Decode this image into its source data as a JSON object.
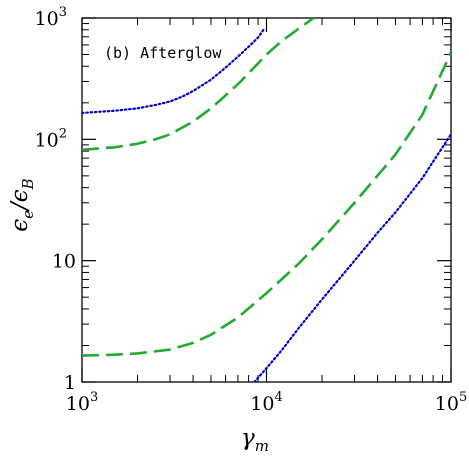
{
  "chart_data": {
    "type": "line",
    "panel_label": "(b) Afterglow",
    "xlabel_symbol": "γ",
    "xlabel_sub": "m",
    "ylabel_num_symbol": "ϵ",
    "ylabel_num_sub": "e",
    "ylabel_den_symbol": "ϵ",
    "ylabel_den_sub": "B",
    "xscale": "log",
    "yscale": "log",
    "xlim": [
      1000,
      100000
    ],
    "ylim": [
      1,
      1000
    ],
    "x_ticks": [
      {
        "value": 1000,
        "base": "10",
        "exp": "3"
      },
      {
        "value": 10000,
        "base": "10",
        "exp": "4"
      },
      {
        "value": 100000,
        "base": "10",
        "exp": "5"
      }
    ],
    "y_ticks": [
      {
        "value": 1,
        "base": "1",
        "exp": ""
      },
      {
        "value": 10,
        "base": "10",
        "exp": ""
      },
      {
        "value": 100,
        "base": "10",
        "exp": "2"
      },
      {
        "value": 1000,
        "base": "10",
        "exp": "3"
      }
    ],
    "grid": false,
    "series": [
      {
        "color": "#0000cc",
        "style": "dotted",
        "points": [
          [
            1000,
            165
          ],
          [
            1500,
            172
          ],
          [
            2000,
            180
          ],
          [
            2500,
            192
          ],
          [
            3000,
            205
          ],
          [
            3500,
            225
          ],
          [
            4000,
            250
          ],
          [
            5000,
            310
          ],
          [
            6000,
            390
          ],
          [
            7000,
            480
          ],
          [
            8000,
            580
          ],
          [
            9000,
            690
          ],
          [
            9800,
            830
          ]
        ]
      },
      {
        "color": "#22aa33",
        "style": "dashed",
        "points": [
          [
            1000,
            82
          ],
          [
            1500,
            86
          ],
          [
            2000,
            92
          ],
          [
            2500,
            100
          ],
          [
            3000,
            110
          ],
          [
            4000,
            140
          ],
          [
            5000,
            180
          ],
          [
            6000,
            230
          ],
          [
            7000,
            285
          ],
          [
            8000,
            350
          ],
          [
            10000,
            500
          ],
          [
            12000,
            640
          ],
          [
            15000,
            820
          ],
          [
            18000,
            1000
          ]
        ]
      },
      {
        "color": "#22aa33",
        "style": "dashed",
        "points": [
          [
            1000,
            1.65
          ],
          [
            1500,
            1.68
          ],
          [
            2000,
            1.72
          ],
          [
            3000,
            1.85
          ],
          [
            4000,
            2.1
          ],
          [
            5000,
            2.45
          ],
          [
            7000,
            3.4
          ],
          [
            10000,
            5.4
          ],
          [
            15000,
            9.5
          ],
          [
            20000,
            15
          ],
          [
            30000,
            30
          ],
          [
            50000,
            75
          ],
          [
            70000,
            160
          ],
          [
            100000,
            520
          ]
        ]
      },
      {
        "color": "#0000cc",
        "style": "dotted",
        "points": [
          [
            8600,
            1
          ],
          [
            10000,
            1.3
          ],
          [
            12000,
            1.8
          ],
          [
            15000,
            2.8
          ],
          [
            20000,
            4.8
          ],
          [
            30000,
            10
          ],
          [
            40000,
            17
          ],
          [
            50000,
            25
          ],
          [
            70000,
            48
          ],
          [
            100000,
            110
          ]
        ]
      }
    ]
  }
}
